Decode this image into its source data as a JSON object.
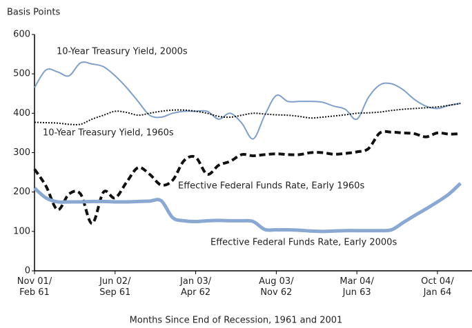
{
  "chart_data": {
    "type": "line",
    "y_label": "Basis Points",
    "x_label": "Months Since End of Recession, 1961 and 2001",
    "x": [
      0,
      1,
      2,
      3,
      4,
      5,
      6,
      7,
      8,
      9,
      10,
      11,
      12,
      13,
      14,
      15,
      16,
      17,
      18,
      19,
      20,
      21,
      22,
      23,
      24,
      25,
      26,
      27,
      28,
      29,
      30,
      31,
      32,
      33,
      34,
      35,
      36,
      37
    ],
    "xlim": [
      0,
      38
    ],
    "xticks": [
      {
        "value": 0,
        "label": "Nov 01/\nFeb 61"
      },
      {
        "value": 7,
        "label": "Jun 02/\nSep 61"
      },
      {
        "value": 14,
        "label": "Jan 03/\nApr 62"
      },
      {
        "value": 21,
        "label": "Aug 03/\nNov 62"
      },
      {
        "value": 28,
        "label": "Mar 04/\nJun 63"
      },
      {
        "value": 35,
        "label": "Oct 04/\nJan 64"
      }
    ],
    "ylim": [
      0,
      600
    ],
    "yticks": [
      0,
      100,
      200,
      300,
      400,
      500,
      600
    ],
    "grid": false,
    "series": [
      {
        "name": "10-Year Treasury Yield, 2000s",
        "color": "#7f9fc8",
        "width": 2,
        "dash": "solid",
        "values": [
          465,
          510,
          505,
          495,
          528,
          525,
          518,
          495,
          465,
          430,
          395,
          390,
          400,
          405,
          405,
          405,
          385,
          400,
          375,
          335,
          395,
          445,
          430,
          430,
          430,
          428,
          418,
          410,
          385,
          440,
          472,
          475,
          460,
          435,
          418,
          412,
          420,
          425
        ]
      },
      {
        "name": "10-Year Treasury Yield, 1960s",
        "color": "#111111",
        "width": 2,
        "dash": "dotted",
        "values": [
          377,
          376,
          375,
          372,
          372,
          385,
          395,
          405,
          402,
          395,
          400,
          405,
          408,
          408,
          405,
          400,
          392,
          390,
          395,
          400,
          398,
          396,
          395,
          392,
          388,
          390,
          393,
          396,
          400,
          401,
          403,
          407,
          410,
          412,
          414,
          416,
          420,
          425
        ]
      },
      {
        "name": "Effective Federal Funds Rate, Early 1960s",
        "color": "#111111",
        "width": 4,
        "dash": "dashed",
        "values": [
          258,
          215,
          155,
          195,
          195,
          120,
          200,
          185,
          225,
          262,
          245,
          218,
          230,
          280,
          288,
          245,
          268,
          278,
          295,
          292,
          295,
          297,
          295,
          295,
          300,
          300,
          296,
          298,
          302,
          310,
          350,
          352,
          350,
          348,
          340,
          350,
          347,
          348
        ]
      },
      {
        "name": "Effective Federal Funds Rate, Early 2000s",
        "color": "#8ba8d3",
        "width": 5,
        "dash": "solid",
        "values": [
          210,
          185,
          175,
          175,
          175,
          176,
          176,
          175,
          175,
          176,
          177,
          178,
          135,
          127,
          125,
          127,
          128,
          127,
          127,
          125,
          105,
          104,
          104,
          103,
          101,
          100,
          101,
          102,
          102,
          102,
          102,
          104,
          122,
          140,
          157,
          175,
          195,
          222
        ]
      }
    ]
  }
}
